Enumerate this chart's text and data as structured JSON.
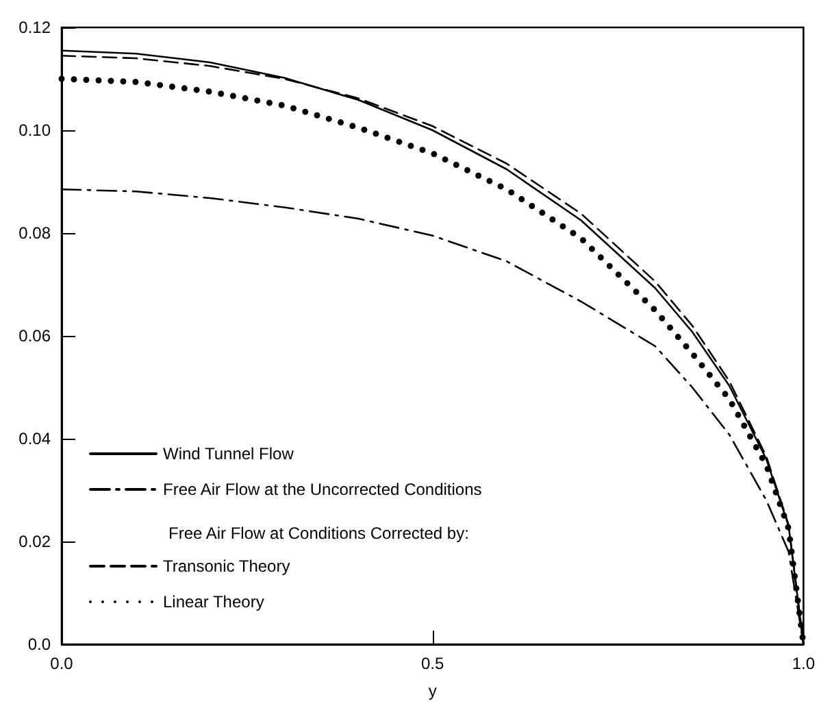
{
  "chart_data": {
    "type": "line",
    "xlabel": "y",
    "x": [
      0,
      0.1,
      0.2,
      0.3,
      0.4,
      0.5,
      0.6,
      0.7,
      0.8,
      0.85,
      0.9,
      0.95,
      0.98,
      1.0
    ],
    "series": [
      {
        "name": "Wind Tunnel Flow",
        "color": "#000000",
        "line_style": "solid",
        "values": [
          0.1155,
          0.1149,
          0.1132,
          0.1102,
          0.1059,
          0.1,
          0.0924,
          0.0825,
          0.0693,
          0.0608,
          0.0503,
          0.036,
          0.023,
          0
        ]
      },
      {
        "name": "Free Air Flow at the Uncorrected Conditions",
        "color": "#000000",
        "line_style": "dashdot",
        "values": [
          0.0885,
          0.0881,
          0.0868,
          0.085,
          0.0828,
          0.0795,
          0.0745,
          0.0667,
          0.058,
          0.05,
          0.0408,
          0.028,
          0.018,
          0
        ]
      },
      {
        "name": "Transonic Theory",
        "color": "#000000",
        "line_style": "dashed",
        "values": [
          0.1145,
          0.114,
          0.1125,
          0.11,
          0.1062,
          0.1008,
          0.0935,
          0.0838,
          0.0706,
          0.062,
          0.0512,
          0.0365,
          0.0232,
          0
        ]
      },
      {
        "name": "Linear Theory",
        "color": "#000000",
        "line_style": "dotted",
        "values": [
          0.11,
          0.1094,
          0.1075,
          0.1048,
          0.1005,
          0.0955,
          0.0885,
          0.079,
          0.065,
          0.0566,
          0.0477,
          0.0348,
          0.0225,
          0
        ]
      }
    ],
    "annotations": [
      "Free Air Flow at Conditions Corrected by:"
    ],
    "xlim": [
      0,
      1
    ],
    "xticks": [
      {
        "value": 0,
        "label": "0.0"
      },
      {
        "value": 0.5,
        "label": "0.5"
      },
      {
        "value": 1,
        "label": "1.0"
      }
    ],
    "ylim": [
      0,
      0.12
    ],
    "yticks": [
      {
        "value": 0,
        "label": "0.0"
      },
      {
        "value": 0.02,
        "label": "0.02"
      },
      {
        "value": 0.04,
        "label": "0.04"
      },
      {
        "value": 0.06,
        "label": "0.06"
      },
      {
        "value": 0.08,
        "label": "0.08"
      },
      {
        "value": 0.1,
        "label": "0.10"
      },
      {
        "value": 0.12,
        "label": "0.12"
      }
    ],
    "grid": false,
    "legend": "bottom left",
    "marker": "none"
  }
}
